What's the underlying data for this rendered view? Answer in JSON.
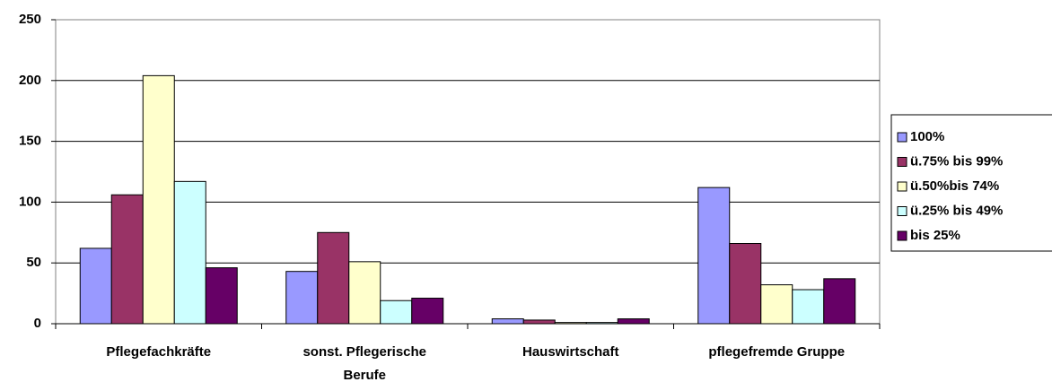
{
  "chart_data": {
    "type": "bar",
    "categories": [
      "Pflegefachkräfte",
      "sonst. Pflegerische Berufe",
      "Hauswirtschaft",
      "pflegefremde Gruppe"
    ],
    "series": [
      {
        "name": "100%",
        "color": "#9999ff",
        "values": [
          62,
          43,
          4,
          112
        ]
      },
      {
        "name": "ü.75% bis 99%",
        "color": "#993366",
        "values": [
          106,
          75,
          3,
          66
        ]
      },
      {
        "name": "ü.50%bis 74%",
        "color": "#ffffcc",
        "values": [
          204,
          51,
          1,
          32
        ]
      },
      {
        "name": "ü.25% bis 49%",
        "color": "#ccffff",
        "values": [
          117,
          19,
          1,
          28
        ]
      },
      {
        "name": "bis 25%",
        "color": "#660066",
        "values": [
          46,
          21,
          4,
          37
        ]
      }
    ],
    "ylim": [
      0,
      250
    ],
    "yticks": [
      0,
      50,
      100,
      150,
      200,
      250
    ],
    "grid": true,
    "legend": "right"
  }
}
